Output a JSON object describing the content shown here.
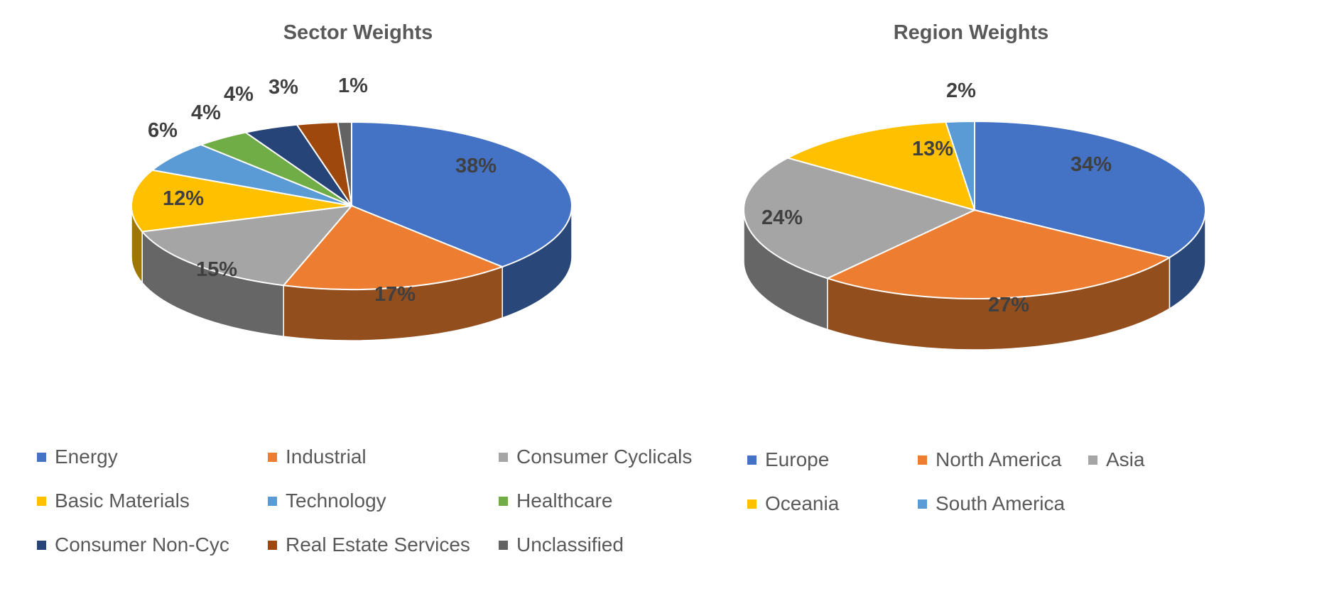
{
  "chart_data": [
    {
      "type": "pie",
      "title": "Sector Weights",
      "categories": [
        "Energy",
        "Industrial",
        "Consumer Cyclicals",
        "Basic Materials",
        "Technology",
        "Healthcare",
        "Consumer Non-Cyc",
        "Real Estate Services",
        "Unclassified"
      ],
      "values": [
        38,
        17,
        15,
        12,
        6,
        4,
        4,
        3,
        1
      ],
      "labels": [
        "38%",
        "17%",
        "15%",
        "12%",
        "6%",
        "4%",
        "4%",
        "3%",
        "1%"
      ],
      "colors": [
        "#4472C4",
        "#ED7D31",
        "#A5A5A5",
        "#FFC000",
        "#5B9BD5",
        "#70AD47",
        "#264478",
        "#9E480E",
        "#636363"
      ],
      "style": "3d"
    },
    {
      "type": "pie",
      "title": "Region Weights",
      "categories": [
        "Europe",
        "North America",
        "Asia",
        "Oceania",
        "South America"
      ],
      "values": [
        34,
        27,
        24,
        13,
        2
      ],
      "labels": [
        "34%",
        "27%",
        "24%",
        "13%",
        "2%"
      ],
      "colors": [
        "#4472C4",
        "#ED7D31",
        "#A5A5A5",
        "#FFC000",
        "#5B9BD5"
      ],
      "style": "3d"
    }
  ]
}
